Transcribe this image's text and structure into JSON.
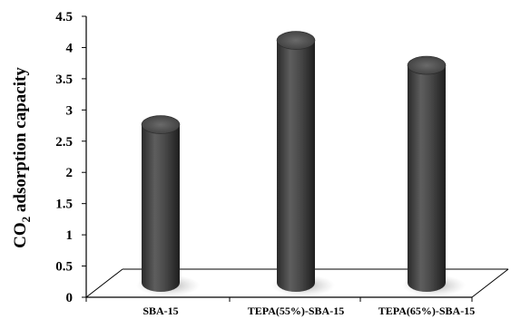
{
  "chart_data": {
    "type": "bar",
    "style": "3d-cylinder",
    "categories": [
      "SBA-15",
      "TEPA(55%)-SBA-15",
      "TEPA(65%)-SBA-15"
    ],
    "values": [
      2.75,
      4.1,
      3.7
    ],
    "ylabel_main": "CO",
    "ylabel_sub": "2",
    "ylabel_rest": " adsorption capacity",
    "ylim": [
      0,
      4.5
    ],
    "yticks": [
      "0",
      "0.5",
      "1",
      "1.5",
      "2",
      "2.5",
      "3",
      "3.5",
      "4",
      "4.5"
    ],
    "grid": false,
    "legend": "none",
    "bar_color": "#4a4a4a"
  }
}
